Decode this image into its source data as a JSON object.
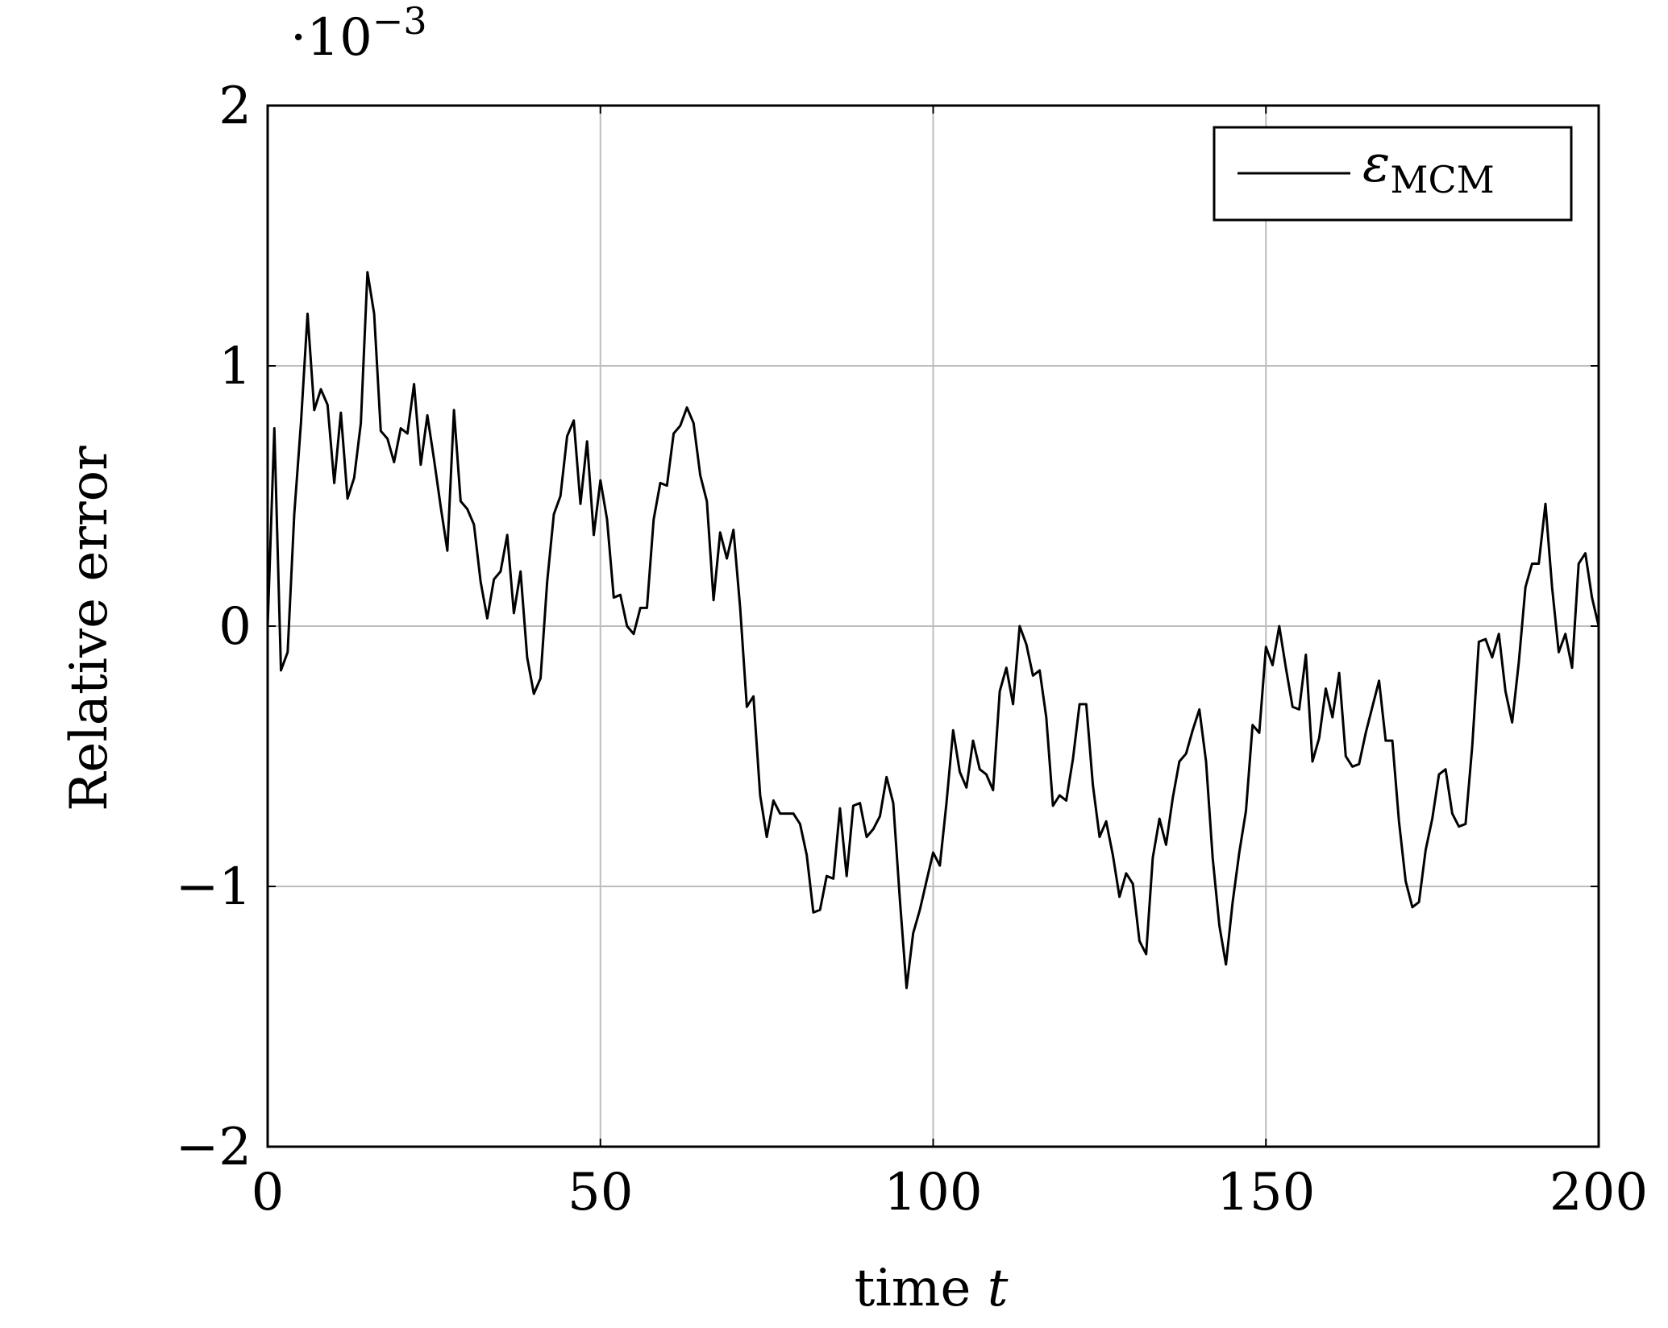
{
  "chart_data": {
    "type": "line",
    "xlabel_text": "time ",
    "xlabel_var": "t",
    "ylabel": "Relative error",
    "y_multiplier": {
      "base": "·10",
      "exponent": "−3"
    },
    "xlim": [
      0,
      200
    ],
    "ylim": [
      -2,
      2
    ],
    "x_ticks": [
      0,
      50,
      100,
      150,
      200
    ],
    "x_tick_labels": [
      "0",
      "50",
      "100",
      "150",
      "200"
    ],
    "y_ticks": [
      -2,
      -1,
      0,
      1,
      2
    ],
    "y_tick_labels": [
      "−2",
      "−1",
      "0",
      "1",
      "2"
    ],
    "grid": true,
    "legend_position": "top-right",
    "series": [
      {
        "name": "MCM",
        "legend_symbol": "ε",
        "legend_subscript": "MCM",
        "color": "#000000",
        "x": [
          0,
          1,
          2,
          3,
          4,
          5,
          6,
          7,
          8,
          9,
          10,
          11,
          12,
          13,
          14,
          15,
          16,
          17,
          18,
          19,
          20,
          21,
          22,
          23,
          24,
          25,
          26,
          27,
          28,
          29,
          30,
          31,
          32,
          33,
          34,
          35,
          36,
          37,
          38,
          39,
          40,
          41,
          42,
          43,
          44,
          45,
          46,
          47,
          48,
          49,
          50,
          51,
          52,
          53,
          54,
          55,
          56,
          57,
          58,
          59,
          60,
          61,
          62,
          63,
          64,
          65,
          66,
          67,
          68,
          69,
          70,
          71,
          72,
          73,
          74,
          75,
          76,
          77,
          78,
          79,
          80,
          81,
          82,
          83,
          84,
          85,
          86,
          87,
          88,
          89,
          90,
          91,
          92,
          93,
          94,
          95,
          96,
          97,
          98,
          99,
          100,
          101,
          102,
          103,
          104,
          105,
          106,
          107,
          108,
          109,
          110,
          111,
          112,
          113,
          114,
          115,
          116,
          117,
          118,
          119,
          120,
          121,
          122,
          123,
          124,
          125,
          126,
          127,
          128,
          129,
          130,
          131,
          132,
          133,
          134,
          135,
          136,
          137,
          138,
          139,
          140,
          141,
          142,
          143,
          144,
          145,
          146,
          147,
          148,
          149,
          150,
          151,
          152,
          153,
          154,
          155,
          156,
          157,
          158,
          159,
          160,
          161,
          162,
          163,
          164,
          165,
          166,
          167,
          168,
          169,
          170,
          171,
          172,
          173,
          174,
          175,
          176,
          177,
          178,
          179,
          180,
          181,
          182,
          183,
          184,
          185,
          186,
          187,
          188,
          189,
          190,
          191,
          192,
          193,
          194,
          195,
          196,
          197,
          198,
          199,
          200
        ],
        "y": [
          0.0,
          0.76,
          -0.17,
          -0.1,
          0.43,
          0.78,
          1.2,
          0.83,
          0.91,
          0.85,
          0.55,
          0.82,
          0.49,
          0.57,
          0.78,
          1.36,
          1.2,
          0.75,
          0.72,
          0.63,
          0.76,
          0.74,
          0.93,
          0.62,
          0.81,
          0.64,
          0.46,
          0.29,
          0.83,
          0.48,
          0.45,
          0.39,
          0.17,
          0.03,
          0.18,
          0.21,
          0.35,
          0.05,
          0.21,
          -0.12,
          -0.26,
          -0.2,
          0.17,
          0.43,
          0.5,
          0.73,
          0.79,
          0.47,
          0.71,
          0.35,
          0.56,
          0.41,
          0.11,
          0.12,
          0.0,
          -0.03,
          0.07,
          0.07,
          0.41,
          0.55,
          0.54,
          0.74,
          0.77,
          0.84,
          0.78,
          0.58,
          0.48,
          0.1,
          0.36,
          0.26,
          0.37,
          0.07,
          -0.31,
          -0.27,
          -0.65,
          -0.81,
          -0.67,
          -0.72,
          -0.72,
          -0.72,
          -0.76,
          -0.88,
          -1.1,
          -1.09,
          -0.96,
          -0.97,
          -0.7,
          -0.96,
          -0.69,
          -0.68,
          -0.81,
          -0.78,
          -0.73,
          -0.58,
          -0.68,
          -1.05,
          -1.39,
          -1.18,
          -1.09,
          -0.98,
          -0.87,
          -0.92,
          -0.68,
          -0.4,
          -0.56,
          -0.62,
          -0.44,
          -0.55,
          -0.57,
          -0.63,
          -0.25,
          -0.16,
          -0.3,
          0.0,
          -0.07,
          -0.19,
          -0.17,
          -0.35,
          -0.69,
          -0.65,
          -0.67,
          -0.51,
          -0.3,
          -0.3,
          -0.61,
          -0.81,
          -0.75,
          -0.88,
          -1.04,
          -0.95,
          -0.99,
          -1.21,
          -1.26,
          -0.89,
          -0.74,
          -0.84,
          -0.66,
          -0.52,
          -0.49,
          -0.4,
          -0.32,
          -0.52,
          -0.89,
          -1.15,
          -1.3,
          -1.06,
          -0.87,
          -0.71,
          -0.38,
          -0.41,
          -0.08,
          -0.15,
          0.0,
          -0.16,
          -0.31,
          -0.32,
          -0.11,
          -0.52,
          -0.43,
          -0.24,
          -0.35,
          -0.18,
          -0.5,
          -0.54,
          -0.53,
          -0.41,
          -0.31,
          -0.21,
          -0.44,
          -0.44,
          -0.75,
          -0.98,
          -1.08,
          -1.06,
          -0.86,
          -0.74,
          -0.57,
          -0.55,
          -0.72,
          -0.77,
          -0.76,
          -0.46,
          -0.06,
          -0.05,
          -0.12,
          -0.03,
          -0.25,
          -0.37,
          -0.14,
          0.15,
          0.24,
          0.24,
          0.47,
          0.15,
          -0.1,
          -0.03,
          -0.16,
          0.24,
          0.28,
          0.11,
          0.0
        ]
      }
    ]
  }
}
